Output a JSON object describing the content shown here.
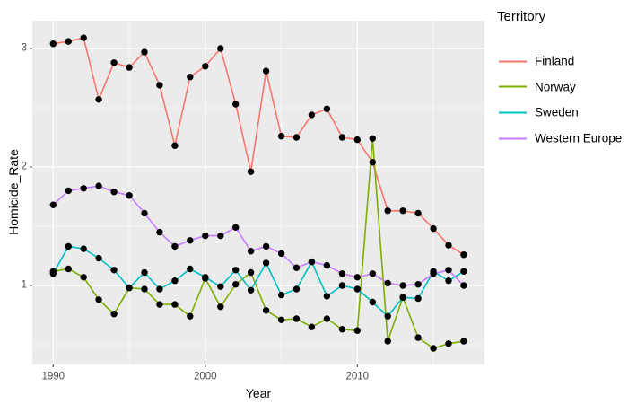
{
  "chart_data": {
    "type": "line",
    "title": "",
    "xlabel": "Year",
    "ylabel": "Homicide_Rate",
    "legend_title": "Territory",
    "legend_position": "right",
    "grid": true,
    "xlim": [
      1988.6,
      2018.4
    ],
    "ylim": [
      0.33,
      3.23
    ],
    "x": [
      1990,
      1991,
      1992,
      1993,
      1994,
      1995,
      1996,
      1997,
      1998,
      1999,
      2000,
      2001,
      2002,
      2003,
      2004,
      2005,
      2006,
      2007,
      2008,
      2009,
      2010,
      2011,
      2012,
      2013,
      2014,
      2015,
      2016,
      2017
    ],
    "series": [
      {
        "name": "Finland",
        "color": "#F8766D",
        "values": [
          3.04,
          3.06,
          3.09,
          2.57,
          2.88,
          2.84,
          2.97,
          2.69,
          2.18,
          2.76,
          2.85,
          3.0,
          2.53,
          1.96,
          2.81,
          2.26,
          2.25,
          2.44,
          2.49,
          2.25,
          2.23,
          2.04,
          1.63,
          1.63,
          1.61,
          1.48,
          1.34,
          1.26
        ]
      },
      {
        "name": "Norway",
        "color": "#7CAE00",
        "values": [
          1.12,
          1.14,
          1.07,
          0.88,
          0.76,
          0.98,
          0.97,
          0.84,
          0.84,
          0.74,
          1.06,
          0.82,
          1.01,
          1.11,
          0.79,
          0.71,
          0.72,
          0.65,
          0.72,
          0.63,
          0.62,
          2.24,
          0.53,
          0.9,
          0.56,
          0.47,
          0.51,
          0.53
        ]
      },
      {
        "name": "Sweden",
        "color": "#00BFC4",
        "values": [
          1.1,
          1.33,
          1.31,
          1.23,
          1.13,
          0.98,
          1.11,
          0.97,
          1.04,
          1.14,
          1.07,
          0.99,
          1.13,
          0.96,
          1.19,
          0.92,
          0.97,
          1.2,
          0.91,
          1.0,
          0.97,
          0.86,
          0.74,
          0.9,
          0.89,
          1.12,
          1.04,
          1.12
        ]
      },
      {
        "name": "Western Europe",
        "color": "#C77CFF",
        "values": [
          1.68,
          1.8,
          1.82,
          1.84,
          1.79,
          1.76,
          1.61,
          1.45,
          1.33,
          1.38,
          1.42,
          1.42,
          1.49,
          1.29,
          1.33,
          1.27,
          1.15,
          1.2,
          1.17,
          1.1,
          1.07,
          1.1,
          1.02,
          1.0,
          1.01,
          1.1,
          1.13,
          1.0
        ]
      }
    ],
    "x_axis": {
      "labels": [
        "1990",
        "2000",
        "2010"
      ],
      "major": [
        1990,
        2000,
        2010
      ],
      "minor": [
        1995,
        2005,
        2015
      ]
    },
    "y_axis": {
      "labels": [
        "1",
        "2",
        "3"
      ],
      "major": [
        1,
        2,
        3
      ],
      "minor": [
        0.5,
        1.5,
        2.5
      ]
    },
    "colors": {
      "panel_bg": "#EBEBEB",
      "grid_major": "#FFFFFF",
      "grid_minor": "#FFFFFF",
      "point": "#000000",
      "tick_mark": "#333333",
      "tick_text": "#4d4d4d",
      "axis_title_text": "#000000"
    }
  }
}
